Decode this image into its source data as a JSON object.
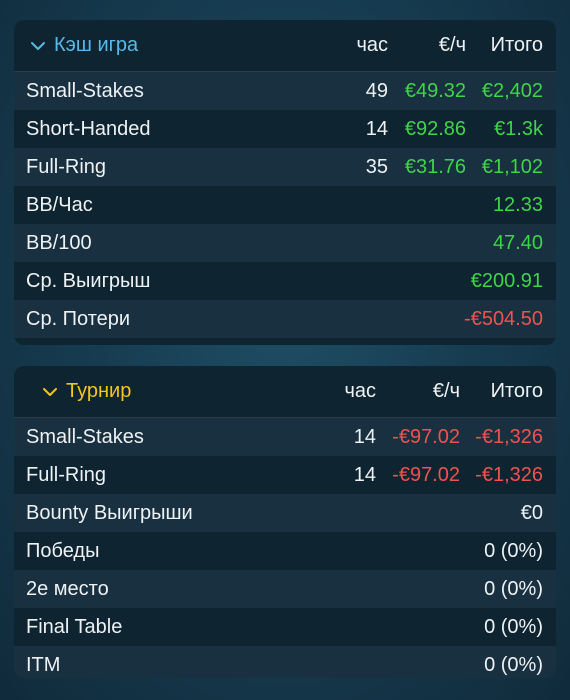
{
  "cash": {
    "title": "Кэш игра",
    "title_color": "#5bb8e6",
    "col_hours": "час",
    "col_rate": "€/ч",
    "col_total": "Итого",
    "rows": [
      {
        "label": "Small-Stakes",
        "hours": "49",
        "rate": "€49.32",
        "total": "€2,402"
      },
      {
        "label": "Short-Handed",
        "hours": "14",
        "rate": "€92.86",
        "total": "€1.3k"
      },
      {
        "label": "Full-Ring",
        "hours": "35",
        "rate": "€31.76",
        "total": "€1,102"
      },
      {
        "label": "BB/Час",
        "total": "12.33"
      },
      {
        "label": "BB/100",
        "total": "47.40"
      },
      {
        "label": "Ср. Выигрыш",
        "total": "€200.91"
      },
      {
        "label": "Ср. Потери",
        "total": "-€504.50"
      }
    ]
  },
  "tournament": {
    "title": "Турнир",
    "title_color": "#f5c518",
    "col_hours": "час",
    "col_rate": "€/ч",
    "col_total": "Итого",
    "rows": [
      {
        "label": "Small-Stakes",
        "hours": "14",
        "rate": "-€97.02",
        "total": "-€1,326"
      },
      {
        "label": "Full-Ring",
        "hours": "14",
        "rate": "-€97.02",
        "total": "-€1,326"
      },
      {
        "label": "Bounty Выигрыши",
        "total": "€0"
      },
      {
        "label": "Победы",
        "total": "0 (0%)"
      },
      {
        "label": "2е место",
        "total": "0 (0%)"
      },
      {
        "label": "Final Table",
        "total": "0 (0%)"
      },
      {
        "label": "ITM",
        "total": "0 (0%)"
      }
    ]
  },
  "colors": {
    "positive": "#3fd44a",
    "negative": "#ef5350"
  }
}
